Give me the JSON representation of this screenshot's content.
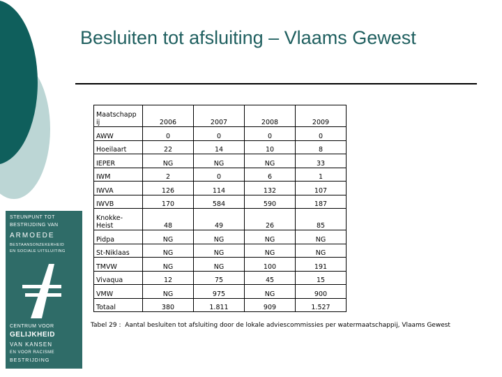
{
  "slide": {
    "title": "Besluiten tot afsluiting – Vlaams Gewest"
  },
  "logo": {
    "lines_top": [
      "STEUNPUNT TOT",
      "BESTRIJDING VAN",
      "ARMOEDE",
      "BESTAANSONZEKERHEID",
      "EN SOCIALE UITSLUITING"
    ],
    "lines_bottom": [
      "CENTRUM VOOR",
      "GELIJKHEID",
      "VAN KANSEN",
      "EN VOOR RACISME",
      "BESTRIJDING"
    ]
  },
  "table": {
    "header": [
      "Maatschappij",
      "2006",
      "2007",
      "2008",
      "2009"
    ],
    "header_first_line1": "Maatschapp",
    "header_first_line2": "ij",
    "rows": [
      {
        "name": "AWW",
        "v": [
          "0",
          "0",
          "0",
          "0"
        ]
      },
      {
        "name": "Hoeilaart",
        "v": [
          "22",
          "14",
          "10",
          "8"
        ]
      },
      {
        "name": "IEPER",
        "v": [
          "NG",
          "NG",
          "NG",
          "33"
        ]
      },
      {
        "name": "IWM",
        "v": [
          "2",
          "0",
          "6",
          "1"
        ]
      },
      {
        "name": "IWVA",
        "v": [
          "126",
          "114",
          "132",
          "107"
        ]
      },
      {
        "name": "IWVB",
        "v": [
          "170",
          "584",
          "590",
          "187"
        ]
      },
      {
        "name": "Knokke-Heist",
        "line1": "Knokke-",
        "line2": "Heist",
        "v": [
          "48",
          "49",
          "26",
          "85"
        ]
      },
      {
        "name": "Pidpa",
        "v": [
          "NG",
          "NG",
          "NG",
          "NG"
        ]
      },
      {
        "name": "St-Niklaas",
        "v": [
          "NG",
          "NG",
          "NG",
          "NG"
        ]
      },
      {
        "name": "TMVW",
        "v": [
          "NG",
          "NG",
          "100",
          "191"
        ]
      },
      {
        "name": "Vivaqua",
        "v": [
          "12",
          "75",
          "45",
          "15"
        ]
      },
      {
        "name": "VMW",
        "v": [
          "NG",
          "975",
          "NG",
          "900"
        ]
      },
      {
        "name": "Totaal",
        "v": [
          "380",
          "1.811",
          "909",
          "1.527"
        ]
      }
    ]
  },
  "caption": {
    "label": "Tabel 29 :",
    "text": "Aantal besluiten tot afsluiting door de lokale adviescommissies per watermaatschappij, Vlaams Gewest"
  },
  "colors": {
    "teal_dark": "#0f5f5c",
    "teal_light": "#bcd6d5",
    "logo_bg": "#2f6c68",
    "title": "#1f5f5f"
  }
}
